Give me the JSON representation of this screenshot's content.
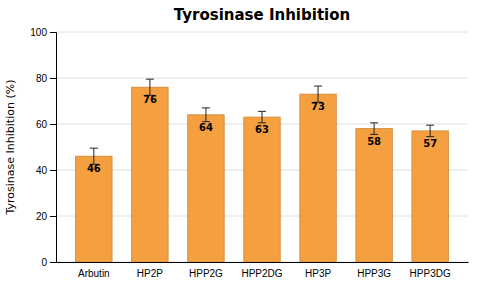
{
  "chart_data": {
    "type": "bar",
    "title": "Tyrosinase Inhibition",
    "ylabel": "Tyrosinase Inhibition (%)",
    "categories": [
      "Arbutin",
      "HP2P",
      "HPP2G",
      "HPP2DG",
      "HP3P",
      "HPP3G",
      "HPP3DG"
    ],
    "values": [
      46,
      76,
      64,
      63,
      73,
      58,
      57
    ],
    "errors": [
      3.5,
      3.5,
      3.0,
      2.5,
      3.5,
      2.5,
      2.5
    ],
    "color": "#F5A040",
    "ylim": [
      0,
      100
    ],
    "yticks": [
      0,
      20,
      40,
      60,
      80,
      100
    ],
    "grid": true,
    "data_labels": true
  }
}
